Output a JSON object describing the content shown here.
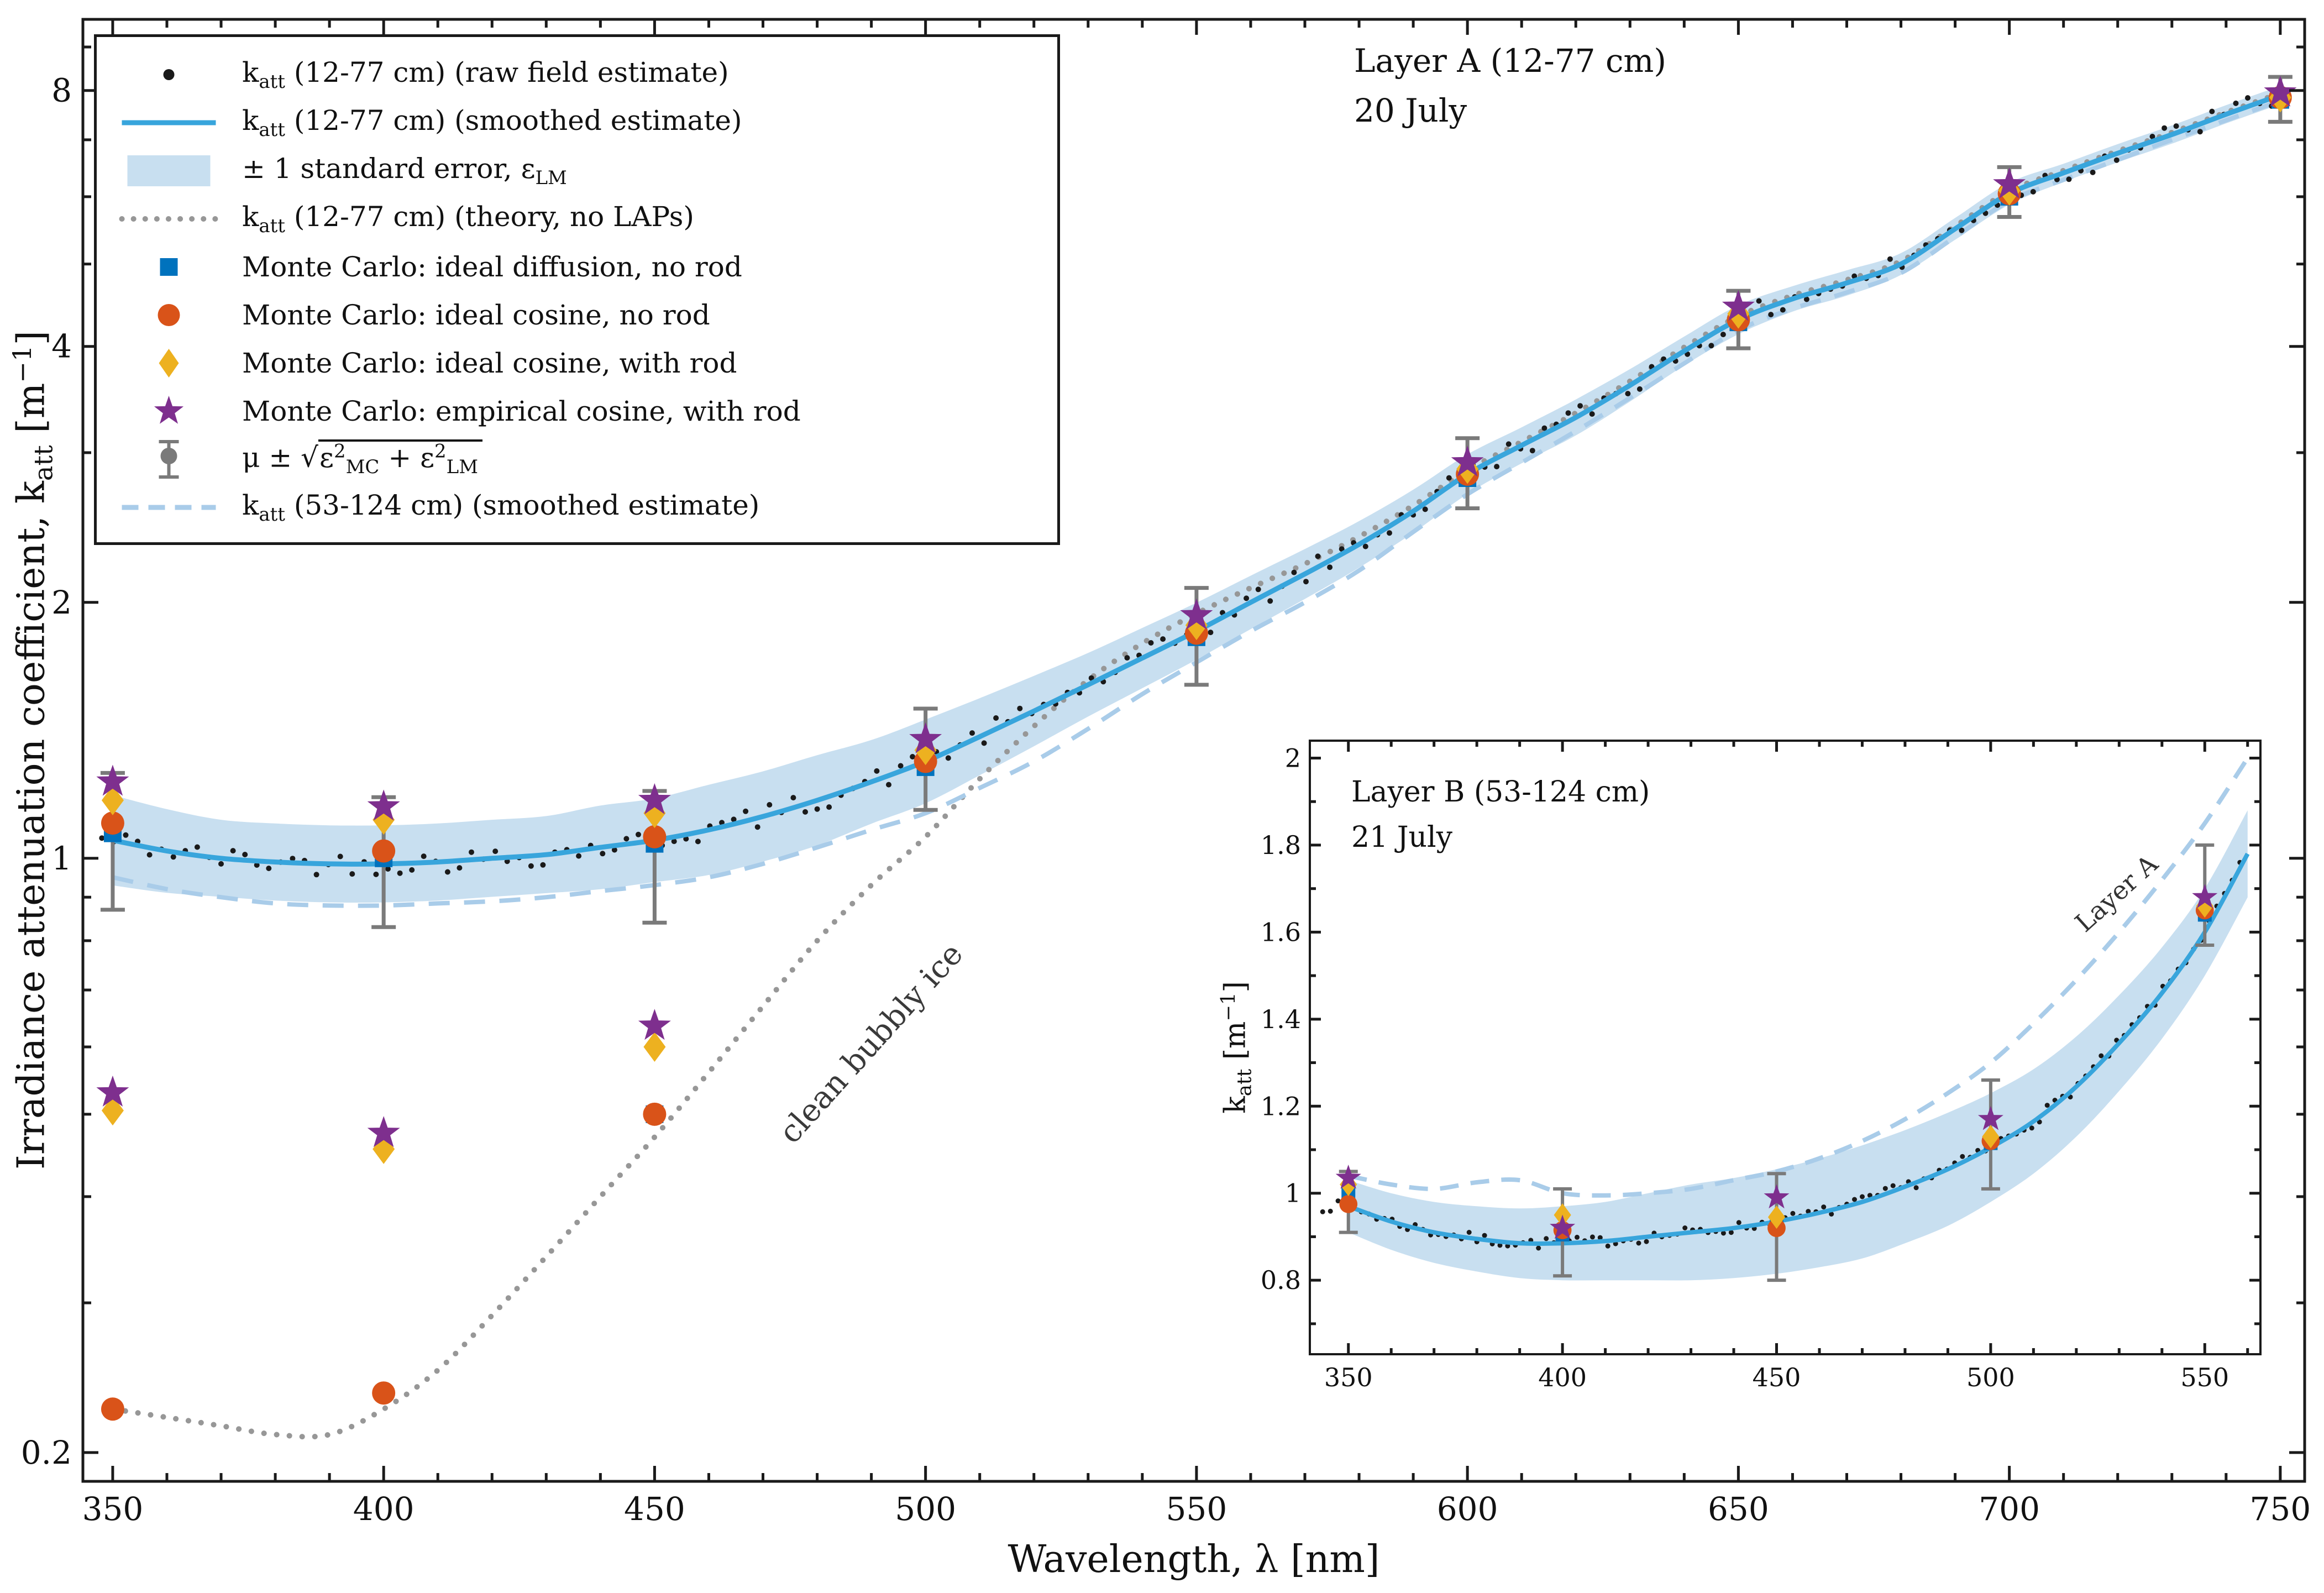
{
  "colors": {
    "smoothed": "#38A5DC",
    "band": "#C8DFF0",
    "dashed_b": "#A9CCE9",
    "theory": "#979797",
    "mc_square": "#0072BD",
    "mc_circle": "#D95319",
    "mc_diamond": "#EDB120",
    "mc_star": "#7E2F8E",
    "errorbar": "#7A7A7A",
    "raw": "#1A1A1A",
    "axis": "#1A1A1A"
  },
  "legend": {
    "items": [
      {
        "marker": "raw",
        "label": "k_{att} (12-77 cm) (raw field estimate)"
      },
      {
        "marker": "smoothed",
        "label": "k_{att} (12-77 cm) (smoothed estimate)"
      },
      {
        "marker": "band",
        "label": "± 1 standard error, ε_{LM}"
      },
      {
        "marker": "theory",
        "label": "k_{att} (12-77 cm) (theory, no LAPs)"
      },
      {
        "marker": "mc-square",
        "label": "Monte Carlo:  ideal diffusion, no rod"
      },
      {
        "marker": "mc-circle",
        "label": "Monte Carlo:  ideal cosine, no rod"
      },
      {
        "marker": "mc-diamond",
        "label": "Monte Carlo:  ideal cosine, with rod"
      },
      {
        "marker": "mc-star",
        "label": "Monte Carlo:  empirical cosine, with rod"
      },
      {
        "marker": "errorbar",
        "label": "μ ± √(ε^{2}_{MC} + ε^{2}_{LM})"
      },
      {
        "marker": "dashed",
        "label": "k_{att} (53-124 cm) (smoothed estimate)"
      }
    ]
  },
  "chart_data": [
    {
      "type": "line",
      "name": "main",
      "xlabel": "Wavelength, λ [nm]",
      "ylabel": "Irradiance attenuation coefficient, k_{att} [m^{−1}]",
      "yscale": "log",
      "xlim": [
        344.5,
        754.5
      ],
      "ylim": [
        0.185,
        9.7
      ],
      "x_ticks": [
        350,
        400,
        450,
        500,
        550,
        600,
        650,
        700,
        750
      ],
      "y_ticks": [
        0.2,
        1,
        2,
        4,
        8
      ],
      "y_minor_ticks": [
        0.3,
        0.4,
        0.5,
        0.6,
        0.7,
        0.8,
        0.9,
        3,
        5,
        6,
        7,
        9
      ],
      "annotations": {
        "layer_label_line1": "Layer A (12-77 cm)",
        "layer_label_line2": "20 July",
        "curve_label": "clean bubbly ice"
      },
      "x": [
        350,
        360,
        370,
        380,
        390,
        400,
        410,
        420,
        430,
        440,
        450,
        460,
        470,
        480,
        490,
        500,
        510,
        520,
        530,
        540,
        550,
        560,
        570,
        580,
        590,
        600,
        610,
        620,
        630,
        640,
        650,
        660,
        670,
        680,
        690,
        700,
        710,
        720,
        730,
        740,
        750
      ],
      "series": [
        {
          "name": "katt_12_77_smoothed",
          "values": [
            1.05,
            1.02,
            1.0,
            0.99,
            0.985,
            0.985,
            0.99,
            1.0,
            1.01,
            1.03,
            1.05,
            1.08,
            1.12,
            1.17,
            1.23,
            1.3,
            1.39,
            1.49,
            1.6,
            1.72,
            1.85,
            2.0,
            2.16,
            2.34,
            2.56,
            2.83,
            3.06,
            3.3,
            3.6,
            3.95,
            4.3,
            4.55,
            4.75,
            5.0,
            5.5,
            6.05,
            6.4,
            6.75,
            7.1,
            7.5,
            7.9
          ]
        },
        {
          "name": "band_factor",
          "values": [
            1.13,
            1.12,
            1.11,
            1.11,
            1.11,
            1.11,
            1.11,
            1.11,
            1.11,
            1.12,
            1.12,
            1.13,
            1.13,
            1.13,
            1.12,
            1.12,
            1.11,
            1.1,
            1.09,
            1.085,
            1.08,
            1.075,
            1.07,
            1.065,
            1.06,
            1.055,
            1.05,
            1.05,
            1.045,
            1.04,
            1.04,
            1.035,
            1.035,
            1.03,
            1.03,
            1.03,
            1.025,
            1.025,
            1.025,
            1.025,
            1.025
          ]
        },
        {
          "name": "katt_53_124_smoothed",
          "values": [
            0.95,
            0.92,
            0.9,
            0.885,
            0.88,
            0.88,
            0.885,
            0.89,
            0.9,
            0.915,
            0.93,
            0.95,
            0.985,
            1.03,
            1.08,
            1.13,
            1.21,
            1.3,
            1.42,
            1.56,
            1.7,
            1.85,
            2.0,
            2.18,
            2.42,
            2.68,
            2.92,
            3.18,
            3.48,
            3.82,
            4.18,
            4.43,
            4.63,
            4.88,
            5.38,
            5.93,
            6.28,
            6.63,
            7.0,
            7.38,
            7.78
          ]
        },
        {
          "name": "theory_no_laps",
          "values": [
            0.225,
            0.22,
            0.215,
            0.21,
            0.21,
            0.225,
            0.25,
            0.29,
            0.34,
            0.4,
            0.47,
            0.56,
            0.67,
            0.8,
            0.93,
            1.06,
            1.24,
            1.43,
            1.62,
            1.79,
            1.94,
            2.08,
            2.22,
            2.39,
            2.6,
            2.86,
            3.09,
            3.34,
            3.64,
            3.99,
            4.34,
            4.59,
            4.79,
            5.04,
            5.54,
            6.09,
            6.44,
            6.79,
            7.14,
            7.54,
            7.94
          ]
        }
      ],
      "raw_dots": {
        "jitter_pct": 3.0,
        "step_nm": 2.2
      },
      "mc_x": [
        350,
        400,
        450,
        500,
        550,
        600,
        650,
        700,
        750
      ],
      "mc": {
        "square": [
          1.07,
          1.0,
          1.04,
          1.28,
          1.82,
          2.8,
          4.27,
          6.0,
          7.8
        ],
        "circle": [
          1.1,
          1.02,
          1.06,
          1.3,
          1.84,
          2.83,
          4.3,
          6.05,
          7.85
        ],
        "diamond": [
          1.17,
          1.11,
          1.13,
          1.34,
          1.88,
          2.87,
          4.37,
          6.1,
          7.85
        ],
        "star": [
          1.23,
          1.15,
          1.17,
          1.38,
          1.93,
          2.92,
          4.45,
          6.2,
          7.95
        ]
      },
      "mc_err_lo": [
        0.87,
        0.83,
        0.84,
        1.14,
        1.6,
        2.58,
        3.98,
        5.68,
        7.35
      ],
      "mc_err_hi": [
        1.26,
        1.18,
        1.2,
        1.5,
        2.08,
        3.12,
        4.65,
        6.5,
        8.3
      ],
      "mc_clean_ice": {
        "x": [
          350,
          400,
          450
        ],
        "circle": [
          0.225,
          0.235,
          0.5
        ],
        "square": [
          null,
          null,
          0.5
        ],
        "diamond": [
          0.505,
          0.455,
          0.6
        ],
        "star": [
          0.53,
          0.475,
          0.635
        ]
      }
    },
    {
      "type": "line",
      "name": "inset",
      "ylabel": "k_{att} [m^{−1}]",
      "yscale": "linear",
      "xlim": [
        341,
        563
      ],
      "ylim": [
        0.63,
        2.04
      ],
      "x_ticks": [
        350,
        400,
        450,
        500,
        550
      ],
      "y_ticks": [
        0.8,
        1,
        1.2,
        1.4,
        1.6,
        1.8,
        2
      ],
      "y_minor_ticks": [
        0.7,
        0.9,
        1.1,
        1.3,
        1.5,
        1.7,
        1.9
      ],
      "annotations": {
        "layer_label_line1": "Layer B (53-124 cm)",
        "layer_label_line2": "21 July",
        "curve_label": "Layer A"
      },
      "x": [
        350,
        360,
        370,
        380,
        390,
        400,
        410,
        420,
        430,
        440,
        450,
        460,
        470,
        480,
        490,
        500,
        510,
        520,
        530,
        540,
        550,
        560
      ],
      "series": [
        {
          "name": "katt_53_124_smoothed",
          "values": [
            0.97,
            0.935,
            0.91,
            0.895,
            0.885,
            0.885,
            0.89,
            0.9,
            0.91,
            0.92,
            0.935,
            0.955,
            0.98,
            1.015,
            1.055,
            1.105,
            1.165,
            1.245,
            1.345,
            1.46,
            1.6,
            1.78
          ]
        },
        {
          "name": "band_halfwidth",
          "values": [
            0.06,
            0.065,
            0.07,
            0.075,
            0.08,
            0.085,
            0.09,
            0.1,
            0.11,
            0.115,
            0.12,
            0.125,
            0.13,
            0.13,
            0.13,
            0.125,
            0.12,
            0.115,
            0.11,
            0.105,
            0.1,
            0.1
          ]
        },
        {
          "name": "katt_12_77_smoothed",
          "values": [
            1.04,
            1.02,
            1.01,
            1.025,
            1.03,
            1.0,
            0.995,
            1.0,
            1.01,
            1.03,
            1.05,
            1.08,
            1.12,
            1.17,
            1.23,
            1.3,
            1.39,
            1.49,
            1.6,
            1.72,
            1.85,
            2.0
          ]
        }
      ],
      "raw_dots": {
        "jitter_abs": 0.026,
        "step_nm": 1.8
      },
      "mc_x": [
        350,
        400,
        450,
        500,
        550
      ],
      "mc": {
        "square": [
          1.0,
          0.905,
          0.925,
          1.115,
          1.64
        ],
        "circle": [
          0.975,
          0.915,
          0.92,
          1.12,
          1.65
        ],
        "diamond": [
          1.02,
          0.95,
          0.945,
          1.13,
          1.66
        ],
        "star": [
          1.035,
          0.92,
          0.99,
          1.17,
          1.68
        ]
      },
      "mc_err_lo": [
        0.91,
        0.81,
        0.8,
        1.01,
        1.57
      ],
      "mc_err_hi": [
        1.05,
        1.01,
        1.045,
        1.26,
        1.8
      ]
    }
  ]
}
